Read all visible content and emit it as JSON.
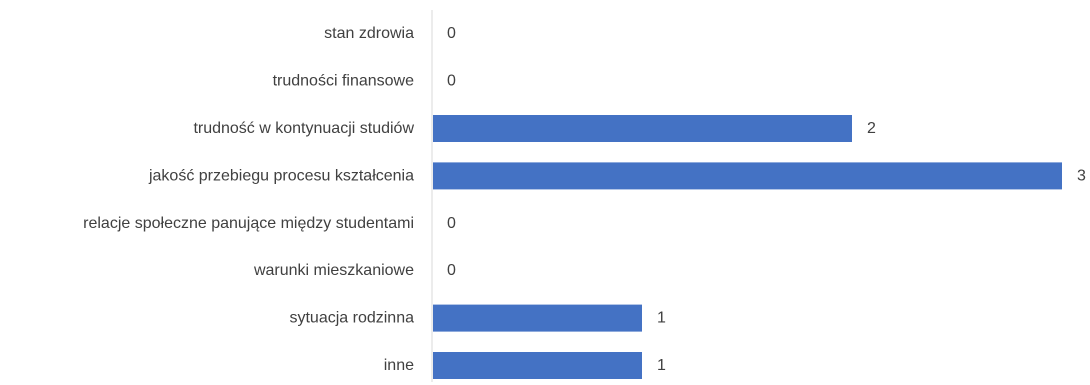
{
  "chart_data": {
    "type": "bar",
    "orientation": "horizontal",
    "categories": [
      "stan zdrowia",
      "trudności finansowe",
      "trudność w kontynuacji studiów",
      "jakość przebiegu procesu kształcenia",
      "relacje społeczne panujące między studentami",
      "warunki mieszkaniowe",
      "sytuacja rodzinna",
      "inne"
    ],
    "values": [
      0,
      0,
      2,
      3,
      0,
      0,
      1,
      1
    ],
    "xlim": [
      0,
      3
    ],
    "bar_color": "#4472c4",
    "axis_color": "#d9d9d9",
    "text_color": "#404040",
    "grid": false,
    "legend": "none"
  }
}
